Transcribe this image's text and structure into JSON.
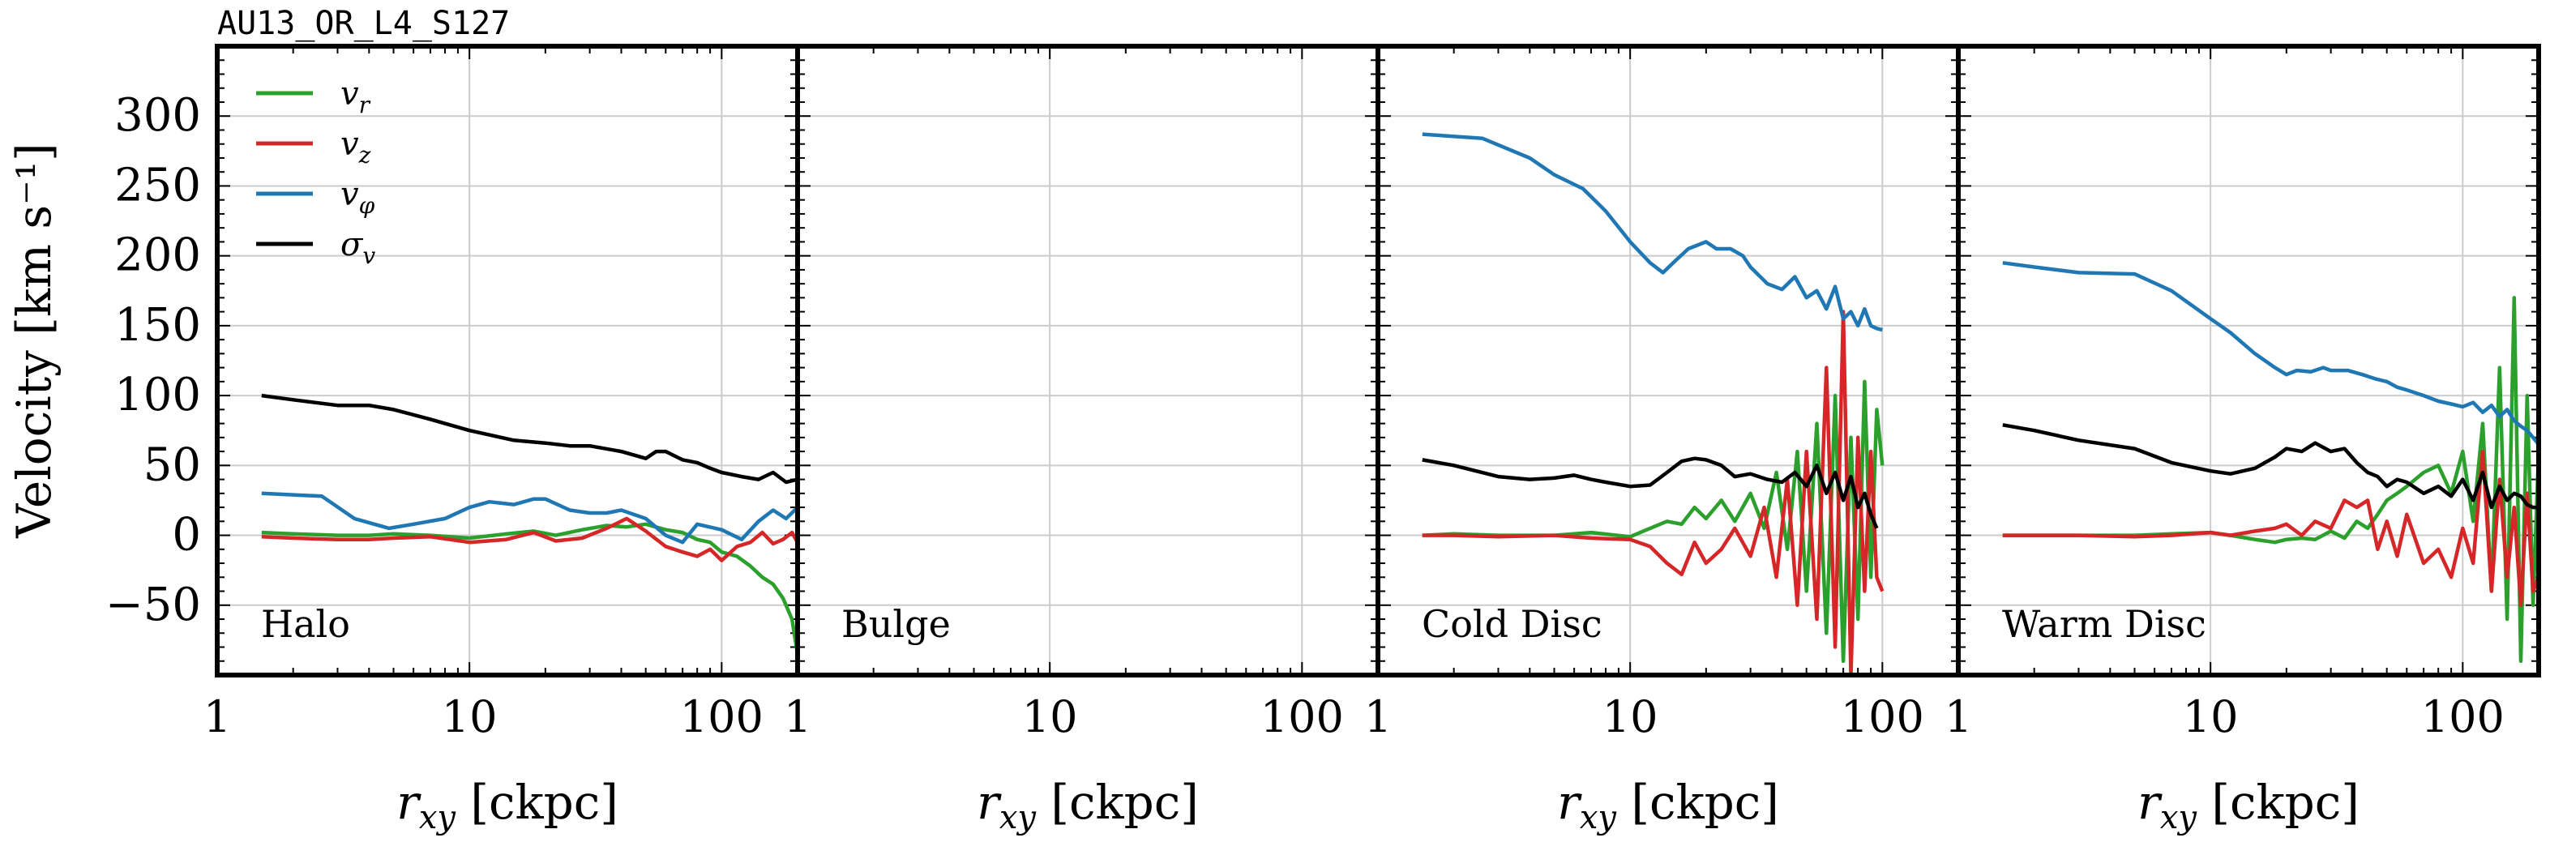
{
  "figure_title": "AU13_OR_L4_S127",
  "y_axis_label": "Velocity [km s⁻¹]",
  "x_axis_label": "r_xy [ckpc]",
  "colors": {
    "v_r": "#2ca02c",
    "v_z": "#d62728",
    "v_phi": "#1f77b4",
    "sigma_v": "#000000",
    "grid": "#cccccc",
    "frame": "#000000"
  },
  "legend": {
    "placement": "top-left of first panel",
    "entries": [
      {
        "key": "v_r",
        "label": "v_r"
      },
      {
        "key": "v_z",
        "label": "v_z"
      },
      {
        "key": "v_phi",
        "label": "v_φ"
      },
      {
        "key": "sigma_v",
        "label": "σ_v"
      }
    ]
  },
  "chart_data": [
    {
      "type": "line",
      "panel_label": "Halo",
      "xscale": "log",
      "xlim": [
        1,
        200
      ],
      "ylim": [
        -100,
        350
      ],
      "xticks": [
        1,
        10,
        100
      ],
      "xtick_labels": [
        "1",
        "10",
        "100"
      ],
      "yticks": [
        -50,
        0,
        50,
        100,
        150,
        200,
        250,
        300
      ],
      "ytick_labels": [
        "−50",
        "0",
        "50",
        "100",
        "150",
        "200",
        "250",
        "300"
      ],
      "grid": true,
      "series": [
        {
          "name": "v_r",
          "x": [
            1.5,
            2,
            3,
            4,
            5,
            7,
            10,
            14,
            18,
            22,
            28,
            35,
            42,
            50,
            60,
            70,
            80,
            90,
            100,
            115,
            130,
            145,
            160,
            175,
            190,
            200
          ],
          "y": [
            2,
            1,
            0,
            0,
            1,
            0,
            -2,
            1,
            3,
            0,
            4,
            7,
            6,
            8,
            4,
            2,
            -3,
            -5,
            -12,
            -15,
            -22,
            -30,
            -35,
            -45,
            -60,
            -85
          ]
        },
        {
          "name": "v_z",
          "x": [
            1.5,
            2,
            3,
            4,
            5,
            7,
            10,
            14,
            18,
            22,
            28,
            35,
            42,
            50,
            60,
            70,
            80,
            90,
            100,
            115,
            130,
            145,
            160,
            175,
            190,
            200
          ],
          "y": [
            -1,
            -2,
            -3,
            -3,
            -2,
            -1,
            -5,
            -3,
            2,
            -4,
            -2,
            5,
            12,
            3,
            -8,
            -12,
            -15,
            -10,
            -18,
            -8,
            -5,
            2,
            -6,
            -3,
            2,
            -5
          ]
        },
        {
          "name": "v_phi",
          "x": [
            1.5,
            2.6,
            3.5,
            4.8,
            6,
            8,
            10,
            12,
            15,
            18,
            20,
            25,
            30,
            35,
            40,
            50,
            60,
            70,
            80,
            100,
            120,
            140,
            160,
            180,
            200
          ],
          "y": [
            30,
            28,
            12,
            5,
            8,
            12,
            20,
            24,
            22,
            26,
            26,
            18,
            16,
            16,
            18,
            12,
            0,
            -5,
            8,
            4,
            -3,
            10,
            18,
            12,
            20
          ]
        },
        {
          "name": "sigma_v",
          "x": [
            1.5,
            2,
            3,
            4,
            5,
            7,
            10,
            15,
            20,
            25,
            30,
            40,
            50,
            55,
            60,
            70,
            80,
            90,
            100,
            120,
            140,
            160,
            180,
            200
          ],
          "y": [
            100,
            97,
            93,
            93,
            90,
            83,
            75,
            68,
            66,
            64,
            64,
            60,
            55,
            60,
            60,
            54,
            52,
            48,
            45,
            42,
            40,
            45,
            38,
            40
          ]
        }
      ]
    },
    {
      "type": "line",
      "panel_label": "Bulge",
      "xscale": "log",
      "xlim": [
        1,
        200
      ],
      "ylim": [
        -100,
        350
      ],
      "xticks": [
        1,
        10,
        100
      ],
      "xtick_labels": [
        "1",
        "10",
        "100"
      ],
      "grid": true,
      "series": []
    },
    {
      "type": "line",
      "panel_label": "Cold Disc",
      "xscale": "log",
      "xlim": [
        1,
        200
      ],
      "ylim": [
        -100,
        350
      ],
      "xticks": [
        1,
        10,
        100
      ],
      "xtick_labels": [
        "1",
        "10",
        "100"
      ],
      "grid": true,
      "series": [
        {
          "name": "v_r",
          "x": [
            1.5,
            2,
            3,
            5,
            7,
            10,
            12,
            14,
            16,
            18,
            20,
            23,
            26,
            30,
            34,
            38,
            42,
            46,
            50,
            55,
            60,
            65,
            70,
            75,
            80,
            85,
            90,
            95,
            100
          ],
          "y": [
            0,
            1,
            0,
            0,
            2,
            -1,
            5,
            10,
            8,
            20,
            12,
            25,
            10,
            30,
            5,
            45,
            -10,
            60,
            -40,
            80,
            -70,
            100,
            -90,
            70,
            -60,
            110,
            -30,
            90,
            50
          ]
        },
        {
          "name": "v_z",
          "x": [
            1.5,
            2,
            3,
            5,
            7,
            10,
            12,
            14,
            16,
            18,
            20,
            23,
            26,
            30,
            34,
            38,
            42,
            46,
            50,
            55,
            60,
            65,
            70,
            75,
            80,
            85,
            90,
            95,
            100
          ],
          "y": [
            0,
            0,
            -1,
            0,
            -2,
            -3,
            -8,
            -20,
            -28,
            -5,
            -20,
            -10,
            5,
            -15,
            20,
            -30,
            40,
            -50,
            60,
            -60,
            120,
            -80,
            160,
            -100,
            70,
            -40,
            60,
            -30,
            -40
          ]
        },
        {
          "name": "v_phi",
          "x": [
            1.5,
            2.6,
            4,
            5,
            6.5,
            8,
            10,
            12,
            13.5,
            15,
            17,
            20,
            22,
            25,
            28,
            30,
            35,
            40,
            45,
            50,
            55,
            60,
            65,
            70,
            75,
            80,
            85,
            90,
            95,
            100
          ],
          "y": [
            287,
            284,
            270,
            258,
            248,
            232,
            210,
            195,
            188,
            196,
            205,
            210,
            205,
            205,
            200,
            192,
            180,
            176,
            185,
            170,
            175,
            162,
            178,
            155,
            160,
            150,
            162,
            150,
            148,
            147
          ]
        },
        {
          "name": "sigma_v",
          "x": [
            1.5,
            2,
            3,
            4,
            5,
            6,
            7,
            8,
            10,
            12,
            14,
            16,
            18,
            20,
            23,
            26,
            30,
            35,
            40,
            45,
            50,
            55,
            60,
            65,
            70,
            75,
            80,
            85,
            90,
            95
          ],
          "y": [
            54,
            50,
            42,
            40,
            41,
            43,
            40,
            38,
            35,
            36,
            45,
            53,
            55,
            54,
            50,
            42,
            44,
            40,
            38,
            45,
            35,
            50,
            30,
            45,
            25,
            42,
            20,
            30,
            15,
            5
          ]
        }
      ]
    },
    {
      "type": "line",
      "panel_label": "Warm Disc",
      "xscale": "log",
      "xlim": [
        1,
        200
      ],
      "ylim": [
        -100,
        350
      ],
      "xticks": [
        1,
        10,
        100
      ],
      "xtick_labels": [
        "1",
        "10",
        "100"
      ],
      "grid": true,
      "series": [
        {
          "name": "v_r",
          "x": [
            1.5,
            2,
            3,
            5,
            7,
            10,
            12,
            15,
            18,
            20,
            23,
            26,
            30,
            34,
            38,
            42,
            46,
            50,
            55,
            60,
            70,
            80,
            90,
            100,
            110,
            120,
            130,
            140,
            150,
            160,
            170,
            180,
            190,
            200
          ],
          "y": [
            0,
            0,
            0,
            0,
            1,
            2,
            0,
            -3,
            -5,
            -3,
            -2,
            -3,
            3,
            -2,
            10,
            5,
            15,
            25,
            30,
            35,
            45,
            50,
            30,
            60,
            10,
            80,
            -40,
            120,
            -60,
            170,
            -90,
            100,
            -50,
            60
          ]
        },
        {
          "name": "v_z",
          "x": [
            1.5,
            2,
            3,
            5,
            7,
            10,
            12,
            15,
            18,
            20,
            23,
            26,
            30,
            34,
            38,
            42,
            46,
            50,
            55,
            60,
            70,
            80,
            90,
            100,
            110,
            120,
            130,
            140,
            150,
            160,
            170,
            180,
            190,
            200
          ],
          "y": [
            0,
            0,
            0,
            -1,
            0,
            2,
            0,
            3,
            5,
            8,
            0,
            10,
            5,
            25,
            20,
            25,
            -10,
            10,
            -15,
            15,
            -20,
            -10,
            -30,
            5,
            -20,
            60,
            -40,
            40,
            -30,
            20,
            -50,
            30,
            -40,
            -30
          ]
        },
        {
          "name": "v_phi",
          "x": [
            1.5,
            2,
            3,
            5,
            7,
            10,
            12,
            15,
            18,
            20,
            22,
            25,
            28,
            30,
            35,
            40,
            45,
            50,
            55,
            60,
            70,
            80,
            90,
            100,
            110,
            120,
            130,
            140,
            150,
            160,
            170,
            180,
            190,
            200
          ],
          "y": [
            195,
            192,
            188,
            187,
            175,
            155,
            145,
            130,
            120,
            115,
            118,
            117,
            120,
            118,
            118,
            115,
            112,
            110,
            106,
            104,
            100,
            96,
            94,
            92,
            95,
            88,
            93,
            85,
            90,
            82,
            78,
            75,
            70,
            65
          ]
        },
        {
          "name": "sigma_v",
          "x": [
            1.5,
            2,
            3,
            5,
            7,
            10,
            12,
            15,
            18,
            20,
            23,
            26,
            30,
            34,
            38,
            42,
            46,
            50,
            55,
            60,
            70,
            80,
            90,
            100,
            110,
            120,
            130,
            140,
            150,
            160,
            170,
            180,
            190,
            200
          ],
          "y": [
            79,
            75,
            68,
            62,
            52,
            46,
            44,
            48,
            56,
            62,
            60,
            66,
            60,
            62,
            52,
            45,
            42,
            35,
            40,
            38,
            30,
            35,
            28,
            40,
            25,
            45,
            20,
            35,
            25,
            30,
            28,
            22,
            20,
            20
          ]
        }
      ]
    }
  ]
}
